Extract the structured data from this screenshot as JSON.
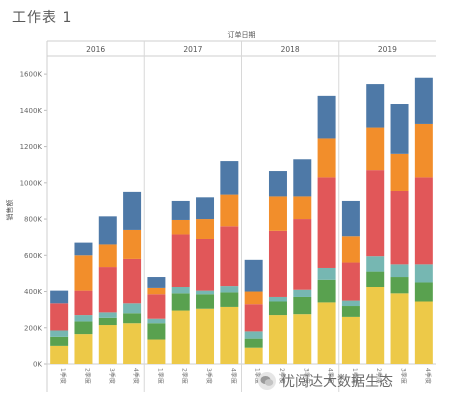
{
  "sheet_title": "工作表 1",
  "watermark_text": "优阅达大数据生态",
  "chart_data": {
    "type": "bar",
    "stacked": true,
    "column_header": "订单日期",
    "ylabel": "销售额",
    "ylim": [
      0,
      1700000
    ],
    "yticks": [
      0,
      200000,
      400000,
      600000,
      800000,
      1000000,
      1200000,
      1400000,
      1600000
    ],
    "ytick_labels": [
      "0K",
      "200K",
      "400K",
      "600K",
      "800K",
      "1000K",
      "1200K",
      "1400K",
      "1600K"
    ],
    "grid": false,
    "legend": "none",
    "panels": [
      {
        "year": "2016",
        "categories": [
          "1季度",
          "2季度",
          "3季度",
          "4季度"
        ]
      },
      {
        "year": "2017",
        "categories": [
          "1季度",
          "2季度",
          "3季度",
          "4季度"
        ]
      },
      {
        "year": "2018",
        "categories": [
          "1季度",
          "2季度",
          "3季度",
          "4季度"
        ]
      },
      {
        "year": "2019",
        "categories": [
          "1季度",
          "2季度",
          "3季度",
          "4季度"
        ]
      }
    ],
    "series": [
      {
        "color": "#edc948",
        "values": [
          100000,
          165000,
          215000,
          225000,
          135000,
          295000,
          305000,
          315000,
          90000,
          270000,
          275000,
          340000,
          260000,
          425000,
          390000,
          345000
        ]
      },
      {
        "color": "#59a14f",
        "values": [
          50000,
          70000,
          40000,
          55000,
          90000,
          95000,
          80000,
          80000,
          50000,
          75000,
          95000,
          125000,
          60000,
          85000,
          90000,
          105000
        ]
      },
      {
        "color": "#76b7b2",
        "values": [
          35000,
          35000,
          30000,
          55000,
          25000,
          35000,
          20000,
          35000,
          40000,
          25000,
          40000,
          65000,
          30000,
          85000,
          70000,
          100000
        ]
      },
      {
        "color": "#e15759",
        "values": [
          150000,
          135000,
          250000,
          245000,
          135000,
          290000,
          285000,
          330000,
          150000,
          365000,
          390000,
          500000,
          210000,
          475000,
          405000,
          480000
        ]
      },
      {
        "color": "#f28e2b",
        "values": [
          0,
          195000,
          125000,
          160000,
          35000,
          80000,
          110000,
          175000,
          70000,
          190000,
          125000,
          215000,
          145000,
          235000,
          205000,
          295000
        ]
      },
      {
        "color": "#4e79a7",
        "values": [
          70000,
          70000,
          155000,
          210000,
          60000,
          105000,
          120000,
          185000,
          175000,
          140000,
          205000,
          235000,
          195000,
          240000,
          275000,
          255000
        ]
      }
    ]
  }
}
